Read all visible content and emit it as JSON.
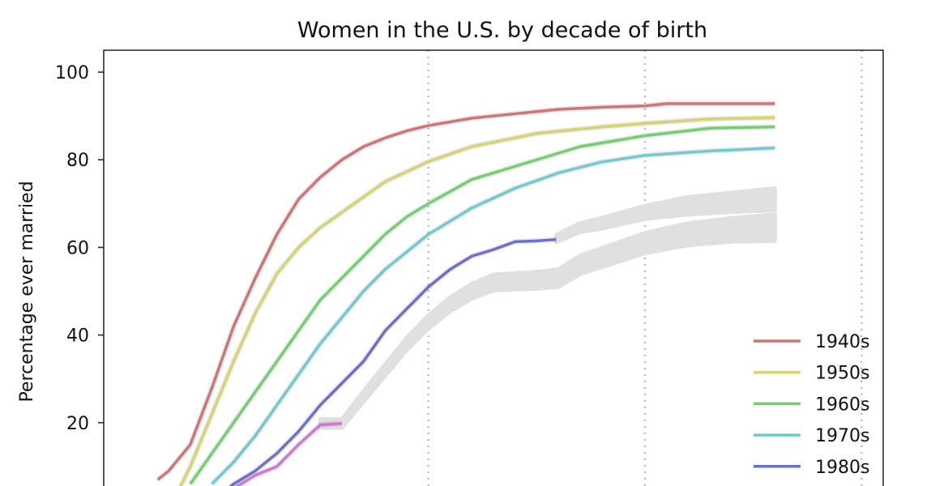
{
  "chart_data": {
    "type": "line",
    "title": "Women in the U.S. by decade of birth",
    "xlabel": "",
    "ylabel": "Percentage ever married",
    "xlim": [
      10,
      46
    ],
    "ylim": [
      0,
      105
    ],
    "yticks": [
      20,
      40,
      60,
      80,
      100
    ],
    "vlines": [
      25,
      35,
      45
    ],
    "grid": false,
    "legend_position": "bottom-right",
    "series": [
      {
        "name": "1940s",
        "color": "#d07474",
        "points": [
          [
            11.8,
            2
          ],
          [
            12.5,
            7
          ],
          [
            13,
            9
          ],
          [
            14,
            15
          ],
          [
            15,
            28
          ],
          [
            16,
            42
          ],
          [
            17,
            53
          ],
          [
            18,
            63
          ],
          [
            19,
            71
          ],
          [
            20,
            76
          ],
          [
            21,
            80
          ],
          [
            22,
            83
          ],
          [
            23,
            85
          ],
          [
            24,
            86.6
          ],
          [
            25,
            87.8
          ],
          [
            27,
            89.5
          ],
          [
            29,
            90.5
          ],
          [
            31,
            91.5
          ],
          [
            33,
            92
          ],
          [
            35,
            92.3
          ],
          [
            36,
            92.8
          ],
          [
            41,
            92.8
          ]
        ]
      },
      {
        "name": "1950s",
        "color": "#d4d470",
        "points": [
          [
            12.8,
            2
          ],
          [
            13.5,
            5
          ],
          [
            14,
            10
          ],
          [
            15,
            22
          ],
          [
            16,
            34
          ],
          [
            17,
            45
          ],
          [
            18,
            54
          ],
          [
            19,
            60
          ],
          [
            20,
            64.5
          ],
          [
            21,
            68
          ],
          [
            22,
            71.5
          ],
          [
            23,
            75
          ],
          [
            25,
            79.6
          ],
          [
            27,
            83
          ],
          [
            30,
            86
          ],
          [
            33,
            87.5
          ],
          [
            35,
            88.3
          ],
          [
            38,
            89.3
          ],
          [
            41,
            89.6
          ]
        ]
      },
      {
        "name": "1960s",
        "color": "#72d072",
        "points": [
          [
            13.3,
            2
          ],
          [
            14,
            6
          ],
          [
            15,
            13
          ],
          [
            16,
            20
          ],
          [
            17,
            27
          ],
          [
            18,
            34
          ],
          [
            19,
            41
          ],
          [
            20,
            48
          ],
          [
            21,
            53
          ],
          [
            22,
            58
          ],
          [
            23,
            63
          ],
          [
            24,
            67
          ],
          [
            25,
            70
          ],
          [
            27,
            75.5
          ],
          [
            30,
            80
          ],
          [
            32,
            83
          ],
          [
            35,
            85.5
          ],
          [
            38,
            87.2
          ],
          [
            41,
            87.5
          ]
        ]
      },
      {
        "name": "1970s",
        "color": "#70cace",
        "points": [
          [
            14.2,
            2
          ],
          [
            15,
            6
          ],
          [
            16,
            11
          ],
          [
            17,
            17
          ],
          [
            18,
            24
          ],
          [
            19,
            31
          ],
          [
            20,
            38
          ],
          [
            21,
            44
          ],
          [
            22,
            50
          ],
          [
            23,
            55
          ],
          [
            24,
            59
          ],
          [
            25,
            63
          ],
          [
            27,
            69
          ],
          [
            29,
            73.5
          ],
          [
            31,
            77
          ],
          [
            33,
            79.5
          ],
          [
            35,
            81
          ],
          [
            38,
            82
          ],
          [
            41,
            82.7
          ]
        ]
      },
      {
        "name": "1980s",
        "color": "#6e6ed2",
        "points": [
          [
            14.8,
            1
          ],
          [
            15.5,
            4
          ],
          [
            16,
            6
          ],
          [
            17,
            9
          ],
          [
            18,
            13
          ],
          [
            19,
            18
          ],
          [
            20,
            24
          ],
          [
            21,
            29
          ],
          [
            22,
            34
          ],
          [
            23,
            41
          ],
          [
            24,
            46
          ],
          [
            25,
            51
          ],
          [
            26,
            55
          ],
          [
            27,
            58
          ],
          [
            28,
            59.5
          ],
          [
            29,
            61.3
          ],
          [
            30,
            61.5
          ],
          [
            30.9,
            61.8
          ]
        ]
      },
      {
        "name": "",
        "color": "#d474d4",
        "points": [
          [
            15.5,
            3
          ],
          [
            16,
            5
          ],
          [
            17,
            8
          ],
          [
            18,
            10
          ],
          [
            19,
            15
          ],
          [
            20,
            19.5
          ],
          [
            21,
            19.8
          ]
        ]
      }
    ],
    "bands": [
      {
        "color": "#e0e0e0",
        "points": [
          [
            30.9,
            62
          ],
          [
            32,
            64.5
          ],
          [
            33,
            65.5
          ],
          [
            35,
            68
          ],
          [
            37,
            69.5
          ],
          [
            39,
            70.3
          ],
          [
            41,
            71
          ]
        ],
        "halfwidth": [
          0.8,
          1,
          1.2,
          1.5,
          2,
          2.2,
          2.5
        ]
      },
      {
        "color": "#e0e0e0",
        "points": [
          [
            20,
            19.8
          ],
          [
            21,
            19.8
          ],
          [
            22,
            26
          ],
          [
            23,
            32
          ],
          [
            24,
            38
          ],
          [
            25,
            43
          ],
          [
            26,
            47
          ],
          [
            27,
            50
          ],
          [
            28,
            52
          ],
          [
            30,
            52.5
          ],
          [
            31,
            53
          ],
          [
            32,
            56
          ],
          [
            35,
            61
          ],
          [
            37,
            63
          ],
          [
            39,
            64
          ],
          [
            41,
            64.5
          ]
        ],
        "halfwidth": [
          1,
          1,
          1.2,
          1.3,
          1.4,
          1.5,
          1.6,
          1.7,
          1.8,
          1.9,
          2,
          2.1,
          2.3,
          2.5,
          2.7,
          3
        ]
      }
    ]
  }
}
